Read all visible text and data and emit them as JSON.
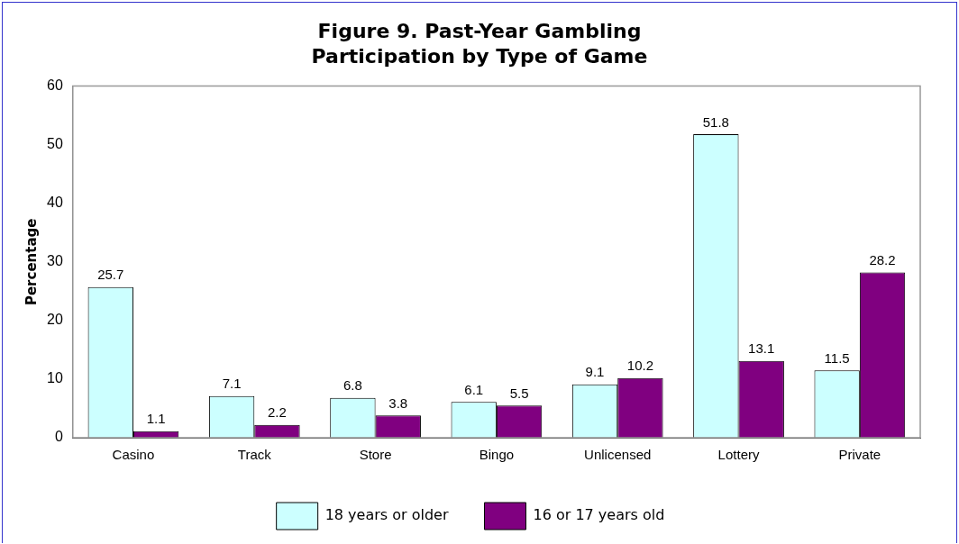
{
  "chart_data": {
    "type": "bar",
    "title": "Figure 9. Past-Year Gambling\nParticipation by Type of Game",
    "ylabel": "Percentage",
    "categories": [
      "Casino",
      "Track",
      "Store",
      "Bingo",
      "Unlicensed",
      "Lottery",
      "Private"
    ],
    "series": [
      {
        "name": "18 years or older",
        "color": "#ccffff",
        "values": [
          25.7,
          7.1,
          6.8,
          6.1,
          9.1,
          51.8,
          11.5
        ]
      },
      {
        "name": "16 or 17 years old",
        "color": "#800080",
        "values": [
          1.1,
          2.2,
          3.8,
          5.5,
          10.2,
          13.1,
          28.2
        ]
      }
    ],
    "ylim": [
      0,
      60
    ],
    "yticks": [
      0,
      10,
      20,
      30,
      40,
      50,
      60
    ],
    "grid": false,
    "legend": "bottom",
    "data_labels": true
  }
}
